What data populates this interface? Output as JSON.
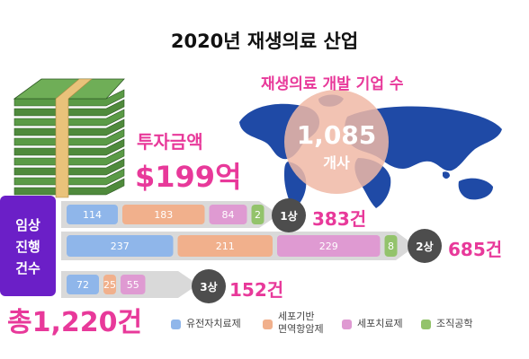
{
  "title": "2020년 재생의료 산업",
  "investment": {
    "label": "투자금액",
    "value": "$199억"
  },
  "companies": {
    "label": "재생의료 개발 기업 수",
    "value": "1,085",
    "unit": "개사"
  },
  "clinical_trials": {
    "label_lines": [
      "임상",
      "진행",
      "건수"
    ],
    "total": "총1,220건"
  },
  "colors": {
    "accent": "#e8399a",
    "purple_box": "#6b1fc7",
    "gene_therapy": "#8fb6ea",
    "immunotherapy": "#f1b08c",
    "cell_therapy": "#df9ad2",
    "tissue_engineering": "#93c36b"
  },
  "icons": {
    "money": "money-stack-icon",
    "map": "world-map-icon"
  },
  "chart_data": {
    "type": "bar",
    "orientation": "horizontal",
    "stacked": true,
    "categories": [
      "1상",
      "2상",
      "3상"
    ],
    "series": [
      {
        "name": "유전자치료제",
        "values": [
          114,
          237,
          72
        ]
      },
      {
        "name": "세포기반 면역항암제",
        "values": [
          183,
          211,
          25
        ]
      },
      {
        "name": "세포치료제",
        "values": [
          84,
          229,
          55
        ]
      },
      {
        "name": "조직공학",
        "values": [
          2,
          8,
          0
        ]
      }
    ],
    "totals": [
      "383건",
      "685건",
      "152건"
    ],
    "legend": [
      "유전자치료제",
      "세포기반\n면역항암제",
      "세포치료제",
      "조직공학"
    ],
    "legend_position": "bottom"
  }
}
